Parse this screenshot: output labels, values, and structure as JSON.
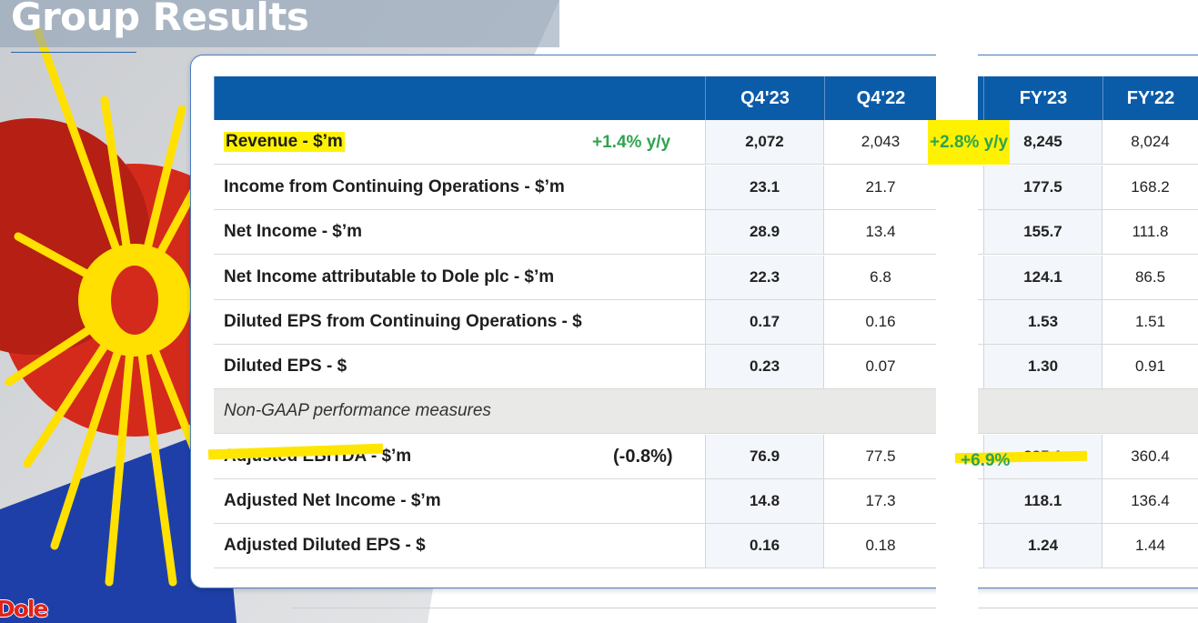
{
  "slide": {
    "title": "Group Results",
    "logo_text": "Dole"
  },
  "colors": {
    "header_blue": "#0b5ca8",
    "highlight_yellow": "#fff200",
    "growth_green": "#2ea44f"
  },
  "table": {
    "columns": [
      "Q4'23",
      "Q4'22",
      "FY'23",
      "FY'22"
    ],
    "rows": [
      {
        "label": "Revenue - $’m",
        "q423": "2,072",
        "q422": "2,043",
        "fy23": "8,245",
        "fy22": "8,024"
      },
      {
        "label": "Income from Continuing Operations - $’m",
        "q423": "23.1",
        "q422": "21.7",
        "fy23": "177.5",
        "fy22": "168.2"
      },
      {
        "label": "Net Income - $’m",
        "q423": "28.9",
        "q422": "13.4",
        "fy23": "155.7",
        "fy22": "111.8"
      },
      {
        "label": "Net Income attributable to Dole plc - $’m",
        "q423": "22.3",
        "q422": "6.8",
        "fy23": "124.1",
        "fy22": "86.5"
      },
      {
        "label": "Diluted EPS from Continuing Operations - $",
        "q423": "0.17",
        "q422": "0.16",
        "fy23": "1.53",
        "fy22": "1.51"
      },
      {
        "label": "Diluted EPS - $",
        "q423": "0.23",
        "q422": "0.07",
        "fy23": "1.30",
        "fy22": "0.91"
      },
      {
        "label": "Non-GAAP performance measures",
        "section": true
      },
      {
        "label": "Adjusted EBITDA - $’m",
        "q423": "76.9",
        "q422": "77.5",
        "fy23": "385.1",
        "fy22": "360.4"
      },
      {
        "label": "Adjusted Net Income - $’m",
        "q423": "14.8",
        "q422": "17.3",
        "fy23": "118.1",
        "fy22": "136.4"
      },
      {
        "label": "Adjusted Diluted EPS - $",
        "q423": "0.16",
        "q422": "0.18",
        "fy23": "1.24",
        "fy22": "1.44"
      }
    ]
  },
  "annotations": {
    "revenue_q4_yoy": "+1.4% y/y",
    "revenue_fy_yoy": "+2.8% y/y",
    "ebitda_q4_change": "(-0.8%)",
    "ebitda_fy_change": "+6.9%"
  }
}
